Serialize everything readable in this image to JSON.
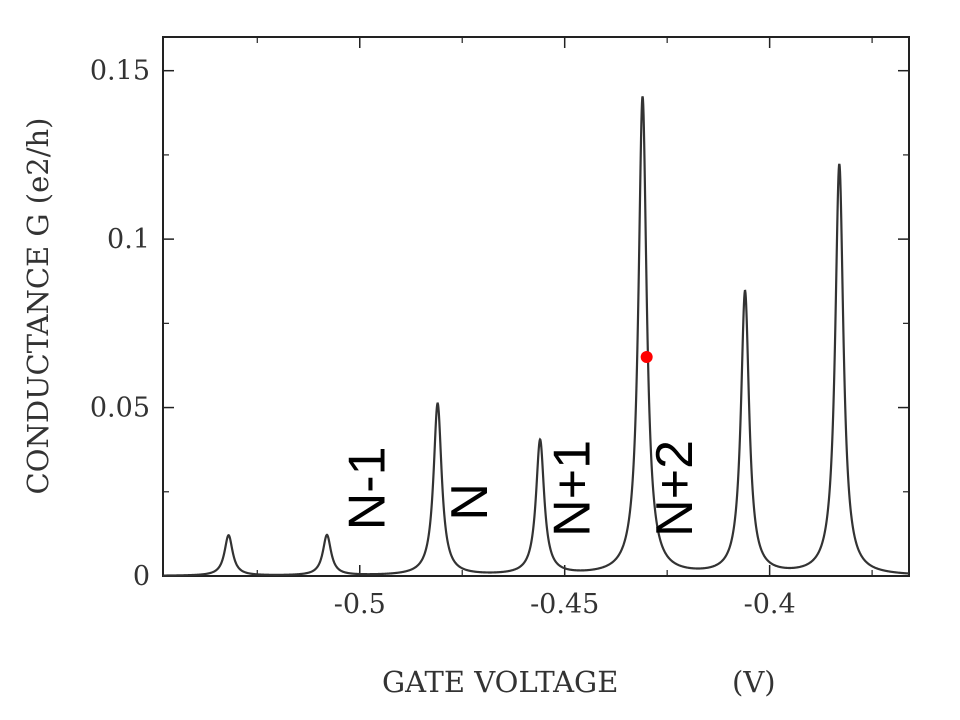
{
  "chart_data": {
    "type": "line",
    "title": "",
    "xlabel": "GATE VOLTAGE",
    "xunit": "(V)",
    "ylabel": "CONDUCTANCE G (e2/h)",
    "xlim": [
      -0.548,
      -0.366
    ],
    "ylim": [
      0,
      0.16
    ],
    "grid": false,
    "x_ticks": [
      -0.5,
      -0.45,
      -0.4
    ],
    "x_tick_labels": [
      "-0.5",
      "-0.45",
      "-0.4"
    ],
    "y_ticks": [
      0,
      0.05,
      0.1,
      0.15
    ],
    "y_tick_labels": [
      "0",
      "0.05",
      "0.1",
      "0.15"
    ],
    "series": [
      {
        "peaks": [
          {
            "x": -0.532,
            "height": 0.012
          },
          {
            "x": -0.508,
            "height": 0.012
          },
          {
            "x": -0.481,
            "height": 0.051
          },
          {
            "x": -0.456,
            "height": 0.04
          },
          {
            "x": -0.431,
            "height": 0.142
          },
          {
            "x": -0.406,
            "height": 0.084
          },
          {
            "x": -0.383,
            "height": 0.122
          }
        ],
        "peak_width": 0.0012,
        "color": "#333333"
      }
    ],
    "annotations": [
      {
        "text": "N-1",
        "x": -0.494,
        "y": 0.026
      },
      {
        "text": "N",
        "x": -0.469,
        "y": 0.022
      },
      {
        "text": "N+1",
        "x": -0.444,
        "y": 0.026
      },
      {
        "text": "N+2",
        "x": -0.419,
        "y": 0.026
      }
    ],
    "marker": {
      "x": -0.43,
      "y": 0.065,
      "color": "#ff0000"
    }
  }
}
